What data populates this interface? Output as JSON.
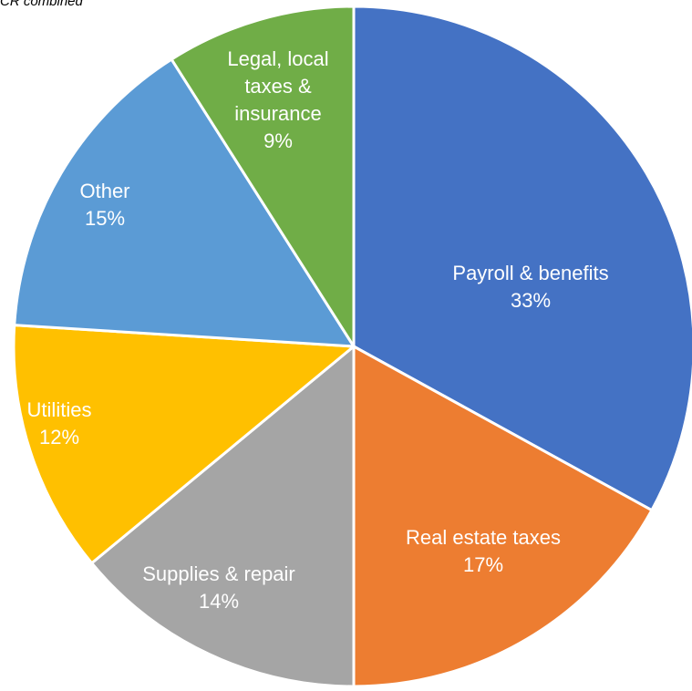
{
  "chart_data": {
    "type": "pie",
    "subtitle": "CR combined",
    "categories": [
      "Payroll & benefits",
      "Real estate taxes",
      "Supplies & repair",
      "Utilities",
      "Other",
      "Legal, local taxes & insurance"
    ],
    "values": [
      33,
      17,
      14,
      12,
      15,
      9
    ],
    "value_labels": [
      "33%",
      "17%",
      "14%",
      "12%",
      "15%",
      "9%"
    ],
    "colors": [
      "#4472c4",
      "#ed7d31",
      "#a5a5a5",
      "#ffc000",
      "#5b9bd5",
      "#70ad47"
    ]
  }
}
